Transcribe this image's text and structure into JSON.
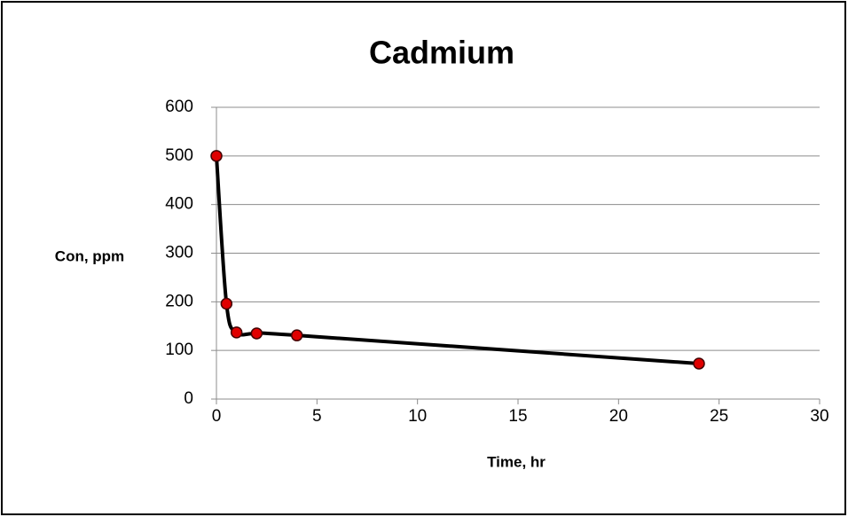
{
  "chart_data": {
    "type": "scatter",
    "title": "Cadmium",
    "x_label": "Time, hr",
    "y_label": "Con, ppm",
    "x": [
      0,
      0.5,
      1,
      2,
      4,
      24
    ],
    "series": [
      {
        "color": "#e00000",
        "values": [
          500,
          196,
          137,
          135,
          131,
          73
        ]
      }
    ],
    "xlim": [
      0,
      30
    ],
    "xticks": [
      0,
      5,
      10,
      15,
      20,
      25,
      30
    ],
    "ylim": [
      0,
      600
    ],
    "yticks": [
      0,
      100,
      200,
      300,
      400,
      500,
      600
    ],
    "grid": true,
    "smooth": true
  }
}
